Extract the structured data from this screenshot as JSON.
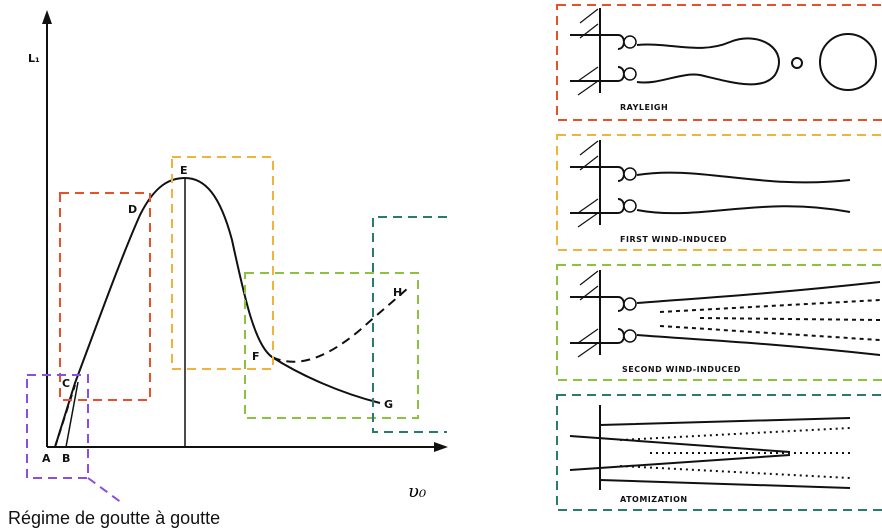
{
  "plot": {
    "y_axis_label": "L₁",
    "x_axis_label": "υ₀",
    "points": [
      "A",
      "B",
      "C",
      "D",
      "E",
      "F",
      "G",
      "H"
    ],
    "annotation": "Régime de goutte à goutte"
  },
  "panels": [
    {
      "label": "RAYLEIGH"
    },
    {
      "label": "FIRST WIND-INDUCED"
    },
    {
      "label": "SECOND WIND-INDUCED"
    },
    {
      "label": "ATOMIZATION"
    }
  ]
}
